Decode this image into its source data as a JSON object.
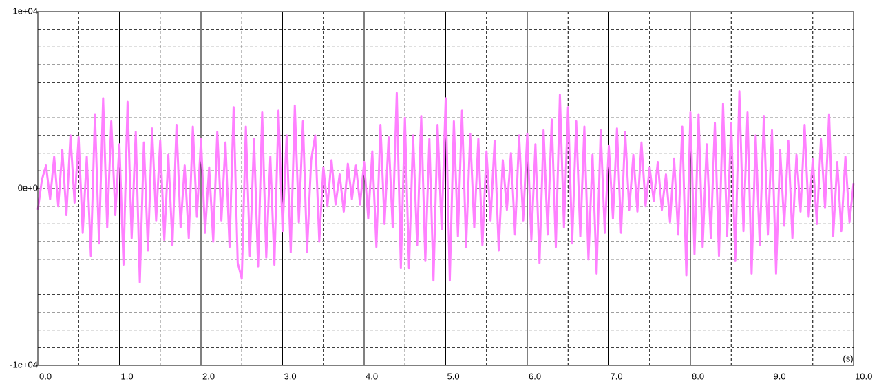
{
  "chart_data": {
    "type": "line",
    "x_label": "(s)",
    "xlim": [
      0,
      10
    ],
    "xticks": [
      {
        "value": 0,
        "label": "0.0"
      },
      {
        "value": 1,
        "label": "1.0"
      },
      {
        "value": 2,
        "label": "2.0"
      },
      {
        "value": 3,
        "label": "3.0"
      },
      {
        "value": 4,
        "label": "4.0"
      },
      {
        "value": 5,
        "label": "5.0"
      },
      {
        "value": 6,
        "label": "6.0"
      },
      {
        "value": 7,
        "label": "7.0"
      },
      {
        "value": 8,
        "label": "8.0"
      },
      {
        "value": 9,
        "label": "9.0"
      },
      {
        "value": 10,
        "label": "10.0"
      }
    ],
    "x_minor_ticks": [
      0.5,
      1.5,
      2.5,
      3.5,
      4.5,
      5.5,
      6.5,
      7.5,
      8.5,
      9.5
    ],
    "ylim": [
      -10000,
      10000
    ],
    "yticks": [
      {
        "value": -10000,
        "label": "-1e+04"
      },
      {
        "value": 0,
        "label": "0e+0"
      },
      {
        "value": 10000,
        "label": "1e+04"
      }
    ],
    "y_minor_ticks": [
      -9000,
      -8000,
      -7000,
      -6000,
      -5000,
      -4000,
      -3000,
      -2000,
      -1000,
      0,
      1000,
      2000,
      3000,
      4000,
      5000,
      6000,
      7000,
      8000,
      9000
    ],
    "grid": true,
    "x": [
      0,
      0.05,
      0.1,
      0.15,
      0.2,
      0.25,
      0.3,
      0.35,
      0.4,
      0.45,
      0.5,
      0.55,
      0.6,
      0.65,
      0.7,
      0.75,
      0.8,
      0.85,
      0.9,
      0.95,
      1,
      1.05,
      1.1,
      1.15,
      1.2,
      1.25,
      1.3,
      1.35,
      1.4,
      1.45,
      1.5,
      1.55,
      1.6,
      1.65,
      1.7,
      1.75,
      1.8,
      1.85,
      1.9,
      1.95,
      2,
      2.05,
      2.1,
      2.15,
      2.2,
      2.25,
      2.3,
      2.35,
      2.4,
      2.45,
      2.5,
      2.55,
      2.6,
      2.65,
      2.7,
      2.75,
      2.8,
      2.85,
      2.9,
      2.95,
      3,
      3.05,
      3.1,
      3.15,
      3.2,
      3.25,
      3.3,
      3.35,
      3.4,
      3.45,
      3.5,
      3.55,
      3.6,
      3.65,
      3.7,
      3.75,
      3.8,
      3.85,
      3.9,
      3.95,
      4,
      4.05,
      4.1,
      4.15,
      4.2,
      4.25,
      4.3,
      4.35,
      4.4,
      4.45,
      4.5,
      4.55,
      4.6,
      4.65,
      4.7,
      4.75,
      4.8,
      4.85,
      4.9,
      4.95,
      5,
      5.05,
      5.1,
      5.15,
      5.2,
      5.25,
      5.3,
      5.35,
      5.4,
      5.45,
      5.5,
      5.55,
      5.6,
      5.65,
      5.7,
      5.75,
      5.8,
      5.85,
      5.9,
      5.95,
      6,
      6.05,
      6.1,
      6.15,
      6.2,
      6.25,
      6.3,
      6.35,
      6.4,
      6.45,
      6.5,
      6.55,
      6.6,
      6.65,
      6.7,
      6.75,
      6.8,
      6.85,
      6.9,
      6.95,
      7,
      7.05,
      7.1,
      7.15,
      7.2,
      7.25,
      7.3,
      7.35,
      7.4,
      7.45,
      7.5,
      7.55,
      7.6,
      7.65,
      7.7,
      7.75,
      7.8,
      7.85,
      7.9,
      7.95,
      8,
      8.05,
      8.1,
      8.15,
      8.2,
      8.25,
      8.3,
      8.35,
      8.4,
      8.45,
      8.5,
      8.55,
      8.6,
      8.65,
      8.7,
      8.75,
      8.8,
      8.85,
      8.9,
      8.95,
      9,
      9.05,
      9.1,
      9.15,
      9.2,
      9.25,
      9.3,
      9.35,
      9.4,
      9.45,
      9.5,
      9.55,
      9.6,
      9.65,
      9.7,
      9.75,
      9.8,
      9.85,
      9.9,
      9.95,
      10
    ],
    "series": [
      {
        "color": "#ff80ff",
        "values": [
          -1200,
          500,
          1300,
          -600,
          1800,
          -1000,
          2200,
          -1500,
          3000,
          -800,
          2900,
          -2500,
          1800,
          -3800,
          4200,
          -3100,
          5100,
          -2200,
          3800,
          -1500,
          2500,
          -4300,
          4900,
          -2800,
          3200,
          -5300,
          2600,
          -3500,
          3400,
          -1800,
          2700,
          -2900,
          1900,
          -3200,
          3600,
          -2200,
          1300,
          -2800,
          3500,
          -1600,
          2800,
          -2500,
          1200,
          -3000,
          3200,
          -1800,
          2600,
          -3300,
          4600,
          -4200,
          -5100,
          3500,
          -3800,
          2800,
          -4400,
          4300,
          -3900,
          1800,
          -4300,
          4400,
          -2400,
          3000,
          -3600,
          4700,
          -1900,
          3800,
          -3600,
          1600,
          3000,
          -3000,
          1200,
          -1000,
          1600,
          -900,
          800,
          -1300,
          1400,
          -600,
          1300,
          -900,
          1500,
          -1700,
          2100,
          -3300,
          3600,
          -2000,
          2900,
          -2200,
          5400,
          -4500,
          4000,
          -4500,
          3000,
          -3200,
          4100,
          -4100,
          2800,
          -5200,
          3600,
          -2300,
          5100,
          -5200,
          3800,
          -2700,
          4400,
          -3300,
          3100,
          -2200,
          2800,
          -3200,
          2100,
          -1800,
          2700,
          -3500,
          1600,
          -1200,
          2000,
          -2600,
          3000,
          -1800,
          3100,
          -2900,
          2500,
          -4200,
          3300,
          -2600,
          3900,
          -3300,
          5300,
          -2200,
          4600,
          -3100,
          3800,
          -2700,
          3500,
          -4000,
          1900,
          -4800,
          3300,
          -2500,
          2400,
          -1700,
          3400,
          -2500,
          3200,
          -1200,
          1900,
          -1300,
          2600,
          -1000,
          1200,
          -700,
          1500,
          -1200,
          800,
          -1900,
          1700,
          -2600,
          3500,
          -4900,
          4300,
          -3700,
          4200,
          -3300,
          2500,
          -2800,
          3700,
          -3800,
          4800,
          -2700,
          3700,
          -4100,
          5500,
          -2400,
          4300,
          -4800,
          3000,
          -3200,
          4100,
          -2600,
          3300,
          -4800,
          2200,
          -2100,
          2700,
          -2800,
          1900,
          -1300,
          3600,
          -1600,
          1700,
          -2000,
          2800,
          -1100,
          4200,
          -2700,
          1500,
          -2400,
          1800,
          -1900,
          300
        ]
      }
    ]
  }
}
